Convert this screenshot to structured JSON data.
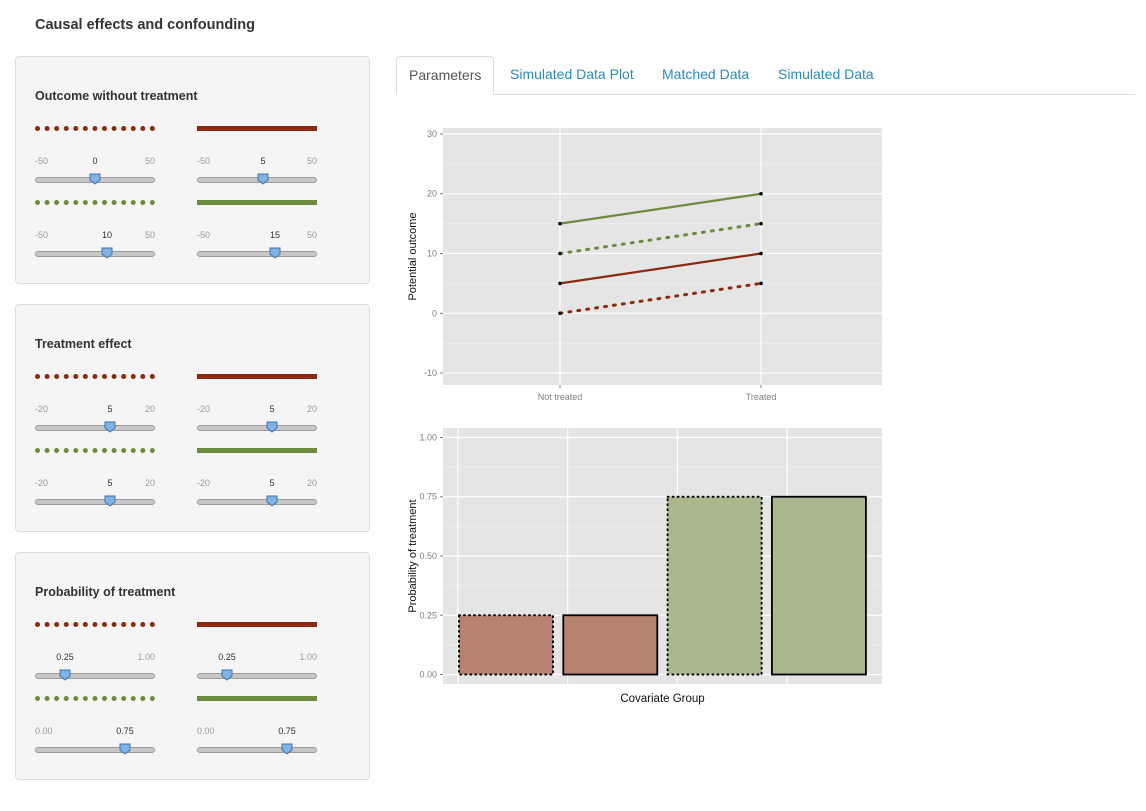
{
  "app_title": "Causal effects and confounding",
  "panels": [
    {
      "title": "Outcome without treatment",
      "sliders": [
        {
          "min": "-50",
          "max": "50",
          "value": "0",
          "frac": 0.5
        },
        {
          "min": "-50",
          "max": "50",
          "value": "5",
          "frac": 0.55
        },
        {
          "min": "-50",
          "max": "50",
          "value": "10",
          "frac": 0.6
        },
        {
          "min": "-50",
          "max": "50",
          "value": "15",
          "frac": 0.65
        }
      ]
    },
    {
      "title": "Treatment effect",
      "sliders": [
        {
          "min": "-20",
          "max": "20",
          "value": "5",
          "frac": 0.625
        },
        {
          "min": "-20",
          "max": "20",
          "value": "5",
          "frac": 0.625
        },
        {
          "min": "-20",
          "max": "20",
          "value": "5",
          "frac": 0.625
        },
        {
          "min": "-20",
          "max": "20",
          "value": "5",
          "frac": 0.625
        }
      ]
    },
    {
      "title": "Probability of treatment",
      "sliders": [
        {
          "min": "",
          "max": "1.00",
          "value": "0.25",
          "frac": 0.25
        },
        {
          "min": "",
          "max": "1.00",
          "value": "0.25",
          "frac": 0.25
        },
        {
          "min": "0.00",
          "max": "",
          "value": "0.75",
          "frac": 0.75
        },
        {
          "min": "0.00",
          "max": "",
          "value": "0.75",
          "frac": 0.75
        }
      ]
    }
  ],
  "legend_colors": {
    "red": "#8b2a0f",
    "green": "#6d8b3d"
  },
  "tabs": [
    "Parameters",
    "Simulated Data Plot",
    "Matched Data",
    "Simulated Data"
  ],
  "active_tab": 0,
  "chart_data": [
    {
      "type": "line",
      "categories": [
        "Not treated",
        "Treated"
      ],
      "ylabel": "Potential outcome",
      "xlabel": "",
      "ylim": [
        -12,
        31
      ],
      "yticks": [
        "30",
        "20",
        "10",
        "0",
        "-10"
      ],
      "grid": true,
      "series": [
        {
          "values": [
            15,
            20
          ],
          "color": "#6d8b3d",
          "style": "solid"
        },
        {
          "values": [
            10,
            15
          ],
          "color": "#6d8b3d",
          "style": "dotted"
        },
        {
          "values": [
            5,
            10
          ],
          "color": "#8b2a0f",
          "style": "solid"
        },
        {
          "values": [
            0,
            5
          ],
          "color": "#8b2a0f",
          "style": "dotted"
        }
      ]
    },
    {
      "type": "bar",
      "xlabel": "Covariate Group",
      "ylabel": "Probability of treatment",
      "ylim": [
        -0.04,
        1.04
      ],
      "yticks": [
        "1.00",
        "0.75",
        "0.50",
        "0.25",
        "0.00"
      ],
      "grid": true,
      "values": [
        0.25,
        0.25,
        0.75,
        0.75
      ],
      "bar_colors": [
        "#b5836f",
        "#b5836f",
        "#a9b88e",
        "#a9b88e"
      ],
      "bar_borders": [
        "dotted",
        "solid",
        "dotted",
        "solid"
      ]
    }
  ]
}
